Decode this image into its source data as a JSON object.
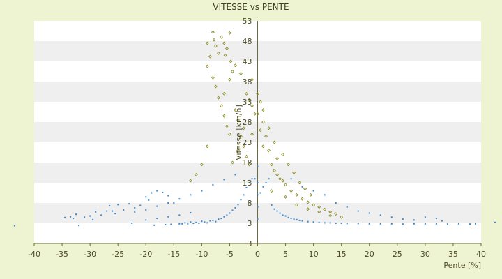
{
  "chart_data": {
    "type": "scatter",
    "title": "VITESSE vs PENTE",
    "xlabel": "Pente [%]",
    "ylabel": "Vitesse [km/h]",
    "xlim": [
      -40,
      40
    ],
    "ylim": [
      3,
      53
    ],
    "x_ticks": [
      "-40",
      "-35",
      "-30",
      "-25",
      "-20",
      "-15",
      "-10",
      "-5",
      "0",
      "5",
      "10",
      "15",
      "20",
      "25",
      "30",
      "35",
      "40"
    ],
    "y_ticks": [
      "53",
      "48",
      "43",
      "38",
      "33",
      "28",
      "23",
      "18",
      "13",
      "8",
      "3",
      "3"
    ],
    "grid": "horizontal alternating bands",
    "legend": "none",
    "colors": {
      "background": "#eef3d2",
      "plot_bg": "#ffffff",
      "band": "#efefef",
      "blue_series": "#3a86c8",
      "olive_series": "#8a8a1e"
    },
    "series": [
      {
        "color": "#3a86c8",
        "points": [
          [
            -43.5,
            2.1
          ],
          [
            -34.5,
            4.4
          ],
          [
            -33.5,
            4.6
          ],
          [
            -33.0,
            4.2
          ],
          [
            -32.5,
            5.2
          ],
          [
            -32.0,
            2.2
          ],
          [
            -31.0,
            4.5
          ],
          [
            -30.0,
            4.8
          ],
          [
            -29.5,
            3.9
          ],
          [
            -29.0,
            5.8
          ],
          [
            -28.0,
            5.0
          ],
          [
            -27.0,
            6.0
          ],
          [
            -26.5,
            7.3
          ],
          [
            -26.0,
            6.0
          ],
          [
            -25.5,
            5.4
          ],
          [
            -25.0,
            7.6
          ],
          [
            -24.0,
            6.3
          ],
          [
            -23.0,
            7.8
          ],
          [
            -22.5,
            3.0
          ],
          [
            -22.0,
            6.8
          ],
          [
            -21.0,
            7.4
          ],
          [
            -20.0,
            9.5
          ],
          [
            -19.5,
            8.7
          ],
          [
            -19.0,
            10.5
          ],
          [
            -18.5,
            2.3
          ],
          [
            -18.0,
            11.0
          ],
          [
            -17.0,
            10.6
          ],
          [
            -16.5,
            2.5
          ],
          [
            -16.0,
            9.8
          ],
          [
            -15.5,
            2.6
          ],
          [
            -15.0,
            8.0
          ],
          [
            -14.0,
            2.8
          ],
          [
            -13.5,
            2.8
          ],
          [
            -13.0,
            3.1
          ],
          [
            -12.5,
            2.8
          ],
          [
            -12.0,
            3.3
          ],
          [
            -11.5,
            3.0
          ],
          [
            -11.0,
            3.2
          ],
          [
            -10.5,
            3.0
          ],
          [
            -10.0,
            3.5
          ],
          [
            -9.5,
            3.3
          ],
          [
            -9.0,
            3.1
          ],
          [
            -8.5,
            3.6
          ],
          [
            -8.0,
            3.7
          ],
          [
            -7.5,
            3.4
          ],
          [
            -7.0,
            4.0
          ],
          [
            -6.5,
            4.2
          ],
          [
            -6.0,
            4.6
          ],
          [
            -5.5,
            5.0
          ],
          [
            -5.0,
            5.5
          ],
          [
            -4.5,
            6.2
          ],
          [
            -4.0,
            6.8
          ],
          [
            -3.5,
            7.6
          ],
          [
            -3.0,
            8.8
          ],
          [
            -2.5,
            10.0
          ],
          [
            -2.0,
            11.8
          ],
          [
            -1.5,
            13.0
          ],
          [
            -1.0,
            14.0
          ],
          [
            -0.5,
            14.0
          ],
          [
            0.0,
            4.0
          ],
          [
            0.0,
            7.0
          ],
          [
            0.0,
            10.0
          ],
          [
            0.0,
            13.0
          ],
          [
            0.0,
            17.0
          ],
          [
            0.5,
            10.5
          ],
          [
            1.0,
            12.0
          ],
          [
            1.5,
            13.0
          ],
          [
            2.0,
            14.0
          ],
          [
            2.5,
            7.5
          ],
          [
            3.0,
            6.5
          ],
          [
            3.5,
            6.0
          ],
          [
            4.0,
            5.5
          ],
          [
            4.5,
            5.0
          ],
          [
            5.0,
            4.8
          ],
          [
            5.5,
            4.4
          ],
          [
            6.0,
            4.2
          ],
          [
            6.5,
            4.0
          ],
          [
            7.0,
            3.9
          ],
          [
            7.5,
            3.7
          ],
          [
            8.0,
            3.6
          ],
          [
            9.0,
            3.4
          ],
          [
            10.0,
            3.3
          ],
          [
            11.0,
            3.2
          ],
          [
            12.0,
            3.1
          ],
          [
            13.0,
            3.1
          ],
          [
            14.0,
            3.0
          ],
          [
            15.0,
            3.0
          ],
          [
            16.0,
            2.9
          ],
          [
            18.0,
            2.9
          ],
          [
            20.0,
            2.8
          ],
          [
            22.0,
            2.8
          ],
          [
            24.0,
            2.8
          ],
          [
            26.0,
            2.7
          ],
          [
            28.0,
            2.8
          ],
          [
            30.0,
            2.8
          ],
          [
            32.0,
            2.8
          ],
          [
            34.0,
            2.7
          ],
          [
            36.0,
            2.8
          ],
          [
            38.0,
            2.7
          ],
          [
            39.0,
            2.8
          ],
          [
            42.5,
            3.2
          ],
          [
            12.0,
            10.0
          ],
          [
            10.0,
            11.0
          ],
          [
            8.0,
            12.0
          ],
          [
            6.0,
            14.0
          ],
          [
            14.0,
            8.0
          ],
          [
            16.0,
            7.0
          ],
          [
            18.0,
            6.0
          ],
          [
            20.0,
            5.5
          ],
          [
            22.0,
            5.0
          ],
          [
            24.0,
            4.5
          ],
          [
            26.0,
            4.0
          ],
          [
            28.0,
            3.8
          ],
          [
            30.0,
            4.5
          ],
          [
            32.0,
            4.2
          ],
          [
            33.0,
            3.6
          ],
          [
            -8.0,
            12.5
          ],
          [
            -10.0,
            11.0
          ],
          [
            -12.0,
            10.0
          ],
          [
            -14.0,
            9.0
          ],
          [
            -16.0,
            8.0
          ],
          [
            -18.0,
            7.2
          ],
          [
            -20.0,
            6.3
          ],
          [
            -22.0,
            5.8
          ],
          [
            -6.0,
            13.8
          ],
          [
            -4.0,
            15.0
          ],
          [
            -12.0,
            5.6
          ],
          [
            -14.0,
            5.0
          ],
          [
            -16.0,
            4.6
          ],
          [
            -18.0,
            4.2
          ],
          [
            -20.0,
            3.8
          ]
        ]
      },
      {
        "color": "#8a8a1e",
        "points": [
          [
            -9.0,
            47.5
          ],
          [
            -8.0,
            50.2
          ],
          [
            -7.8,
            48.3
          ],
          [
            -7.5,
            46.8
          ],
          [
            -7.0,
            45.0
          ],
          [
            -6.5,
            49.0
          ],
          [
            -6.0,
            47.5
          ],
          [
            -5.8,
            44.5
          ],
          [
            -5.5,
            46.2
          ],
          [
            -5.0,
            50.0
          ],
          [
            -4.8,
            43.0
          ],
          [
            -4.5,
            40.5
          ],
          [
            -8.5,
            44.2
          ],
          [
            -9.0,
            41.8
          ],
          [
            -8.0,
            39.0
          ],
          [
            -7.5,
            36.8
          ],
          [
            -7.0,
            34.0
          ],
          [
            -6.5,
            32.0
          ],
          [
            -6.0,
            29.5
          ],
          [
            -5.5,
            27.0
          ],
          [
            -5.0,
            25.0
          ],
          [
            -4.0,
            31.0
          ],
          [
            -3.5,
            28.5
          ],
          [
            -3.0,
            24.5
          ],
          [
            -2.5,
            22.0
          ],
          [
            -2.0,
            19.5
          ],
          [
            -1.5,
            17.5
          ],
          [
            -1.0,
            25.0
          ],
          [
            -0.5,
            30.0
          ],
          [
            0.5,
            33.0
          ],
          [
            1.0,
            28.0
          ],
          [
            1.5,
            24.5
          ],
          [
            2.0,
            21.0
          ],
          [
            2.5,
            17.5
          ],
          [
            3.0,
            16.0
          ],
          [
            3.5,
            19.0
          ],
          [
            4.0,
            14.0
          ],
          [
            4.5,
            13.5
          ],
          [
            5.0,
            12.5
          ],
          [
            6.0,
            11.0
          ],
          [
            7.0,
            10.0
          ],
          [
            8.0,
            9.0
          ],
          [
            9.0,
            8.2
          ],
          [
            10.0,
            7.5
          ],
          [
            11.0,
            7.0
          ],
          [
            12.0,
            6.4
          ],
          [
            13.0,
            5.8
          ],
          [
            14.0,
            5.3
          ],
          [
            -10.0,
            17.5
          ],
          [
            -9.0,
            22.0
          ],
          [
            -11.0,
            15.0
          ],
          [
            -12.0,
            13.5
          ],
          [
            -6.0,
            35.0
          ],
          [
            -5.0,
            38.5
          ],
          [
            -2.0,
            35.0
          ],
          [
            -1.5,
            33.5
          ],
          [
            -1.0,
            32.0
          ],
          [
            0.0,
            30.0
          ],
          [
            0.5,
            26.0
          ],
          [
            1.0,
            22.0
          ],
          [
            2.0,
            26.5
          ],
          [
            3.5,
            15.0
          ],
          [
            5.5,
            17.5
          ],
          [
            6.5,
            15.5
          ],
          [
            7.5,
            13.0
          ],
          [
            8.5,
            11.5
          ],
          [
            9.5,
            10.0
          ],
          [
            4.5,
            20.0
          ],
          [
            3.0,
            23.0
          ],
          [
            -3.0,
            40.0
          ],
          [
            -4.0,
            42.0
          ],
          [
            -1.0,
            38.5
          ],
          [
            0.0,
            35.0
          ],
          [
            1.0,
            31.0
          ],
          [
            -2.5,
            26.5
          ],
          [
            -3.5,
            21.0
          ],
          [
            -4.5,
            18.0
          ],
          [
            2.5,
            11.0
          ],
          [
            5.0,
            9.5
          ],
          [
            7.0,
            7.5
          ],
          [
            9.0,
            6.5
          ],
          [
            11.0,
            5.8
          ],
          [
            13.0,
            4.9
          ],
          [
            15.0,
            4.5
          ]
        ]
      }
    ]
  }
}
